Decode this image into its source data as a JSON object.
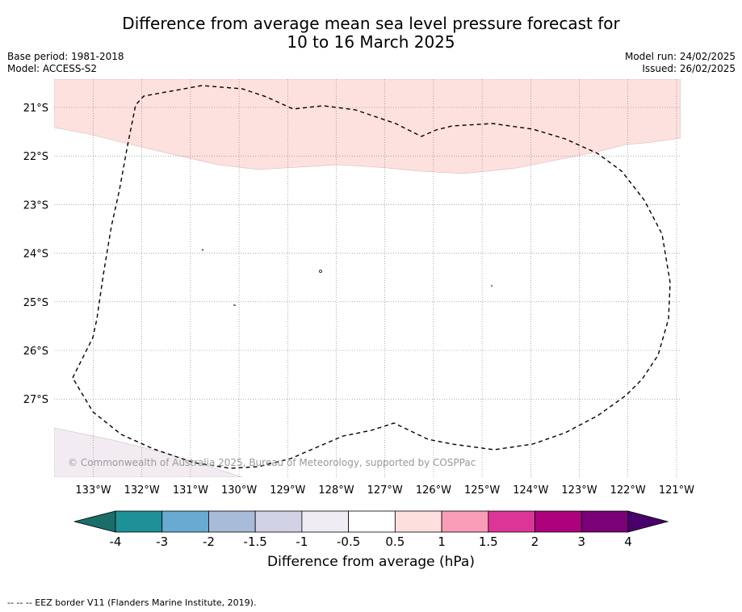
{
  "title": {
    "line1": "Difference from average mean sea level pressure forecast for",
    "line2": "10 to 16 March 2025"
  },
  "meta_left": {
    "base_period": "Base period: 1981-2018",
    "model": "Model: ACCESS-S2"
  },
  "meta_right": {
    "model_run": "Model run: 24/02/2025",
    "issued": "Issued: 26/02/2025"
  },
  "map": {
    "lat_labels": [
      "21°S",
      "22°S",
      "23°S",
      "24°S",
      "25°S",
      "26°S",
      "27°S"
    ],
    "lon_labels": [
      "133°W",
      "132°W",
      "131°W",
      "130°W",
      "129°W",
      "128°W",
      "127°W",
      "126°W",
      "125°W",
      "124°W",
      "123°W",
      "122°W",
      "121°W"
    ],
    "copyright": "© Commonwealth of Australia 2025, Bureau of Meteorology, supported by COSPPac",
    "grid": "dotted",
    "colors": {
      "positive_anomaly_fill": "#fce1de",
      "negative_anomaly_fill": "#f2ecf2",
      "eez_line": "#000000"
    }
  },
  "colorbar": {
    "ticks": [
      "-4",
      "-3",
      "-2",
      "-1.5",
      "-1",
      "-0.5",
      "0.5",
      "1",
      "1.5",
      "2",
      "3",
      "4"
    ],
    "colors": [
      "#1a6e6a",
      "#1d9196",
      "#68aad2",
      "#a8bbd9",
      "#d2d2e6",
      "#f0ecf3",
      "#ffffff",
      "#fde0de",
      "#f99db9",
      "#dd3497",
      "#ad017e",
      "#7a0177",
      "#49006a"
    ],
    "label": "Difference from average (hPa)"
  },
  "footnote": "--  --  -- EEZ border V11 (Flanders Marine Institute, 2019)."
}
